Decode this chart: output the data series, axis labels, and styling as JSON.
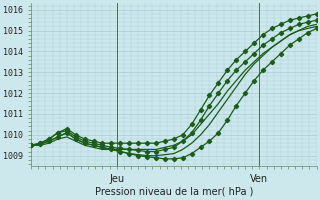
{
  "xlabel": "Pression niveau de la mer( hPa )",
  "background_color": "#cce8ec",
  "grid_color": "#aaccd4",
  "line_color": "#1a5c1a",
  "ylim": [
    1008.5,
    1016.3
  ],
  "xlim": [
    0,
    1
  ],
  "yticks": [
    1009,
    1010,
    1011,
    1012,
    1013,
    1014,
    1015,
    1016
  ],
  "day_labels": [
    "Jeu",
    "Ven"
  ],
  "day_positions": [
    0.3,
    0.8
  ],
  "series": [
    {
      "y": [
        1009.5,
        1009.6,
        1009.8,
        1010.1,
        1010.3,
        1010.0,
        1009.8,
        1009.7,
        1009.6,
        1009.6,
        1009.6,
        1009.6,
        1009.6,
        1009.6,
        1009.6,
        1009.7,
        1009.8,
        1010.0,
        1010.5,
        1011.2,
        1011.9,
        1012.5,
        1013.1,
        1013.6,
        1014.0,
        1014.4,
        1014.8,
        1015.1,
        1015.3,
        1015.5,
        1015.6,
        1015.7,
        1015.8
      ],
      "marker": true,
      "lw": 0.9
    },
    {
      "y": [
        1009.5,
        1009.6,
        1009.8,
        1010.1,
        1010.2,
        1009.9,
        1009.7,
        1009.6,
        1009.5,
        1009.4,
        1009.35,
        1009.3,
        1009.25,
        1009.2,
        1009.2,
        1009.3,
        1009.4,
        1009.7,
        1010.1,
        1010.7,
        1011.4,
        1012.0,
        1012.6,
        1013.1,
        1013.5,
        1013.9,
        1014.3,
        1014.6,
        1014.9,
        1015.1,
        1015.3,
        1015.4,
        1015.5
      ],
      "marker": true,
      "lw": 0.9
    },
    {
      "y": [
        1009.5,
        1009.55,
        1009.7,
        1009.9,
        1010.1,
        1009.8,
        1009.6,
        1009.5,
        1009.4,
        1009.3,
        1009.2,
        1009.1,
        1009.0,
        1008.95,
        1008.9,
        1008.85,
        1008.85,
        1008.9,
        1009.1,
        1009.4,
        1009.7,
        1010.1,
        1010.7,
        1011.4,
        1012.0,
        1012.6,
        1013.1,
        1013.5,
        1013.9,
        1014.3,
        1014.6,
        1014.9,
        1015.1
      ],
      "marker": true,
      "lw": 0.9
    },
    {
      "y": [
        1009.5,
        1009.55,
        1009.7,
        1009.9,
        1010.1,
        1009.8,
        1009.6,
        1009.5,
        1009.4,
        1009.3,
        1009.2,
        1009.1,
        1009.05,
        1009.0,
        1009.0,
        1009.05,
        1009.1,
        1009.3,
        1009.6,
        1010.0,
        1010.5,
        1011.1,
        1011.7,
        1012.3,
        1012.9,
        1013.4,
        1013.8,
        1014.2,
        1014.5,
        1014.8,
        1015.0,
        1015.2,
        1015.3
      ],
      "marker": false,
      "lw": 0.9
    },
    {
      "y": [
        1009.5,
        1009.5,
        1009.6,
        1009.8,
        1009.9,
        1009.7,
        1009.5,
        1009.4,
        1009.3,
        1009.3,
        1009.3,
        1009.3,
        1009.3,
        1009.3,
        1009.3,
        1009.4,
        1009.5,
        1009.7,
        1010.0,
        1010.5,
        1011.0,
        1011.5,
        1012.1,
        1012.6,
        1013.1,
        1013.5,
        1013.9,
        1014.2,
        1014.5,
        1014.8,
        1015.0,
        1015.1,
        1015.2
      ],
      "marker": false,
      "lw": 0.9
    }
  ],
  "n_points": 33,
  "figsize": [
    3.2,
    2.0
  ],
  "dpi": 100,
  "ytick_fontsize": 6,
  "xtick_fontsize": 7,
  "xlabel_fontsize": 7
}
